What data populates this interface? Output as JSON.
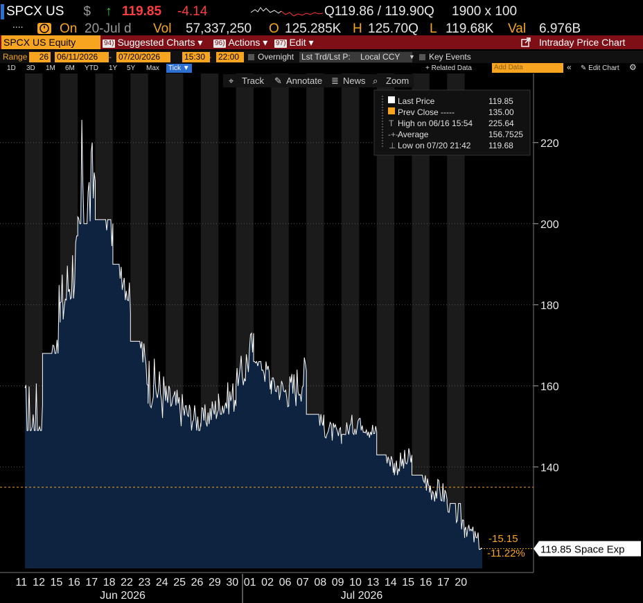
{
  "header": {
    "ticker": "SPCX US",
    "currency": "$",
    "last_price": "119.85",
    "net_change": "-4.14",
    "bid_ask": "Q119.86 / 119.90Q",
    "size": "1900 x 100"
  },
  "quote_bar": {
    "dots": "....",
    "on_label": "On",
    "date": "20-Jul d",
    "vol_label": "Vol",
    "vol": "57,337,250",
    "open_label": "O",
    "open": "125.285K",
    "high_label": "H",
    "high": "125.70Q",
    "low_label": "L",
    "low": "119.68K",
    "val_label": "Val",
    "val": "6.976B"
  },
  "toolbar": {
    "security": "SPCX US Equity",
    "suggested_num": "94)",
    "suggested": "Suggested Charts",
    "actions_num": "96)",
    "actions": "Actions",
    "edit_num": "97)",
    "edit": "Edit",
    "title": "Intraday Price Chart"
  },
  "range_bar": {
    "range_label": "Range",
    "range_days": "26",
    "start_date": "06/11/2026",
    "end_date": "07/20/2026",
    "start_time": "15:30",
    "end_time": "22:00",
    "overnight": "Overnight",
    "last_trade": "Lst Trd/Lst P:",
    "currency": "Local CCY",
    "key_events": "Key Events"
  },
  "period_bar": {
    "periods": [
      "1D",
      "3D",
      "1M",
      "6M",
      "YTD",
      "1Y",
      "5Y",
      "Max"
    ],
    "selected": "Tick",
    "related": "+ Related Data",
    "add_data_placeholder": "Add Data",
    "edit_chart": "Edit Chart"
  },
  "chart_tools": {
    "track": "Track",
    "annotate": "Annotate",
    "news": "News",
    "zoom": "Zoom"
  },
  "legend": {
    "last_price_label": "Last Price",
    "last_price": "119.85",
    "prev_close_label": "Prev Close -----",
    "prev_close": "135.00",
    "high_label": "High on 06/16 15:54",
    "high": "225.64",
    "average_label": "Average",
    "average": "156.7525",
    "low_label": "Low on 07/20 21:42",
    "low": "119.68"
  },
  "price_tag": "119.85 Space Exp",
  "change_abs": "-15.15",
  "change_pct": "-11.22%",
  "colors": {
    "background": "#000000",
    "area_fill": "#0d2340",
    "line": "#ffffff",
    "prev_close": "#f7a520",
    "up": "#3cd14d",
    "down": "#ff3333",
    "toolbar": "#7e0f17",
    "accent": "#f7a520"
  },
  "chart_data": {
    "type": "area",
    "x_label_days": [
      "11",
      "12",
      "15",
      "16",
      "17",
      "18",
      "22",
      "23",
      "24",
      "25",
      "26",
      "29",
      "30",
      "01",
      "02",
      "06",
      "07",
      "08",
      "09",
      "10",
      "13",
      "14",
      "15",
      "16",
      "17",
      "20"
    ],
    "months": [
      "Jun 2026",
      "Jul 2026"
    ],
    "y_ticks": [
      140,
      160,
      180,
      200,
      220
    ],
    "ylim": [
      115,
      235
    ],
    "prev_close": 135.0,
    "series": [
      {
        "name": "Last Price",
        "day_close": [
          150,
          178,
          193,
          213,
          197,
          182,
          162,
          157,
          154,
          151,
          155,
          158,
          171,
          161,
          158,
          163,
          150,
          147,
          152,
          148,
          140,
          142,
          135,
          133,
          126,
          119.85
        ],
        "day_extremes": [
          [
            149,
            176
          ],
          [
            168,
            187
          ],
          [
            176,
            197
          ],
          [
            200,
            225.6
          ],
          [
            189,
            201
          ],
          [
            178,
            190
          ],
          [
            160,
            171
          ],
          [
            152,
            167
          ],
          [
            150,
            160
          ],
          [
            149,
            157
          ],
          [
            150,
            158
          ],
          [
            153,
            163
          ],
          [
            160,
            173
          ],
          [
            156,
            166
          ],
          [
            154,
            162
          ],
          [
            155,
            167
          ],
          [
            146,
            153
          ],
          [
            145,
            151
          ],
          [
            148,
            155
          ],
          [
            146,
            152
          ],
          [
            137,
            143
          ],
          [
            138,
            145
          ],
          [
            132,
            138
          ],
          [
            130,
            137
          ],
          [
            122,
            131
          ],
          [
            119.68,
            125.7
          ]
        ]
      }
    ]
  }
}
